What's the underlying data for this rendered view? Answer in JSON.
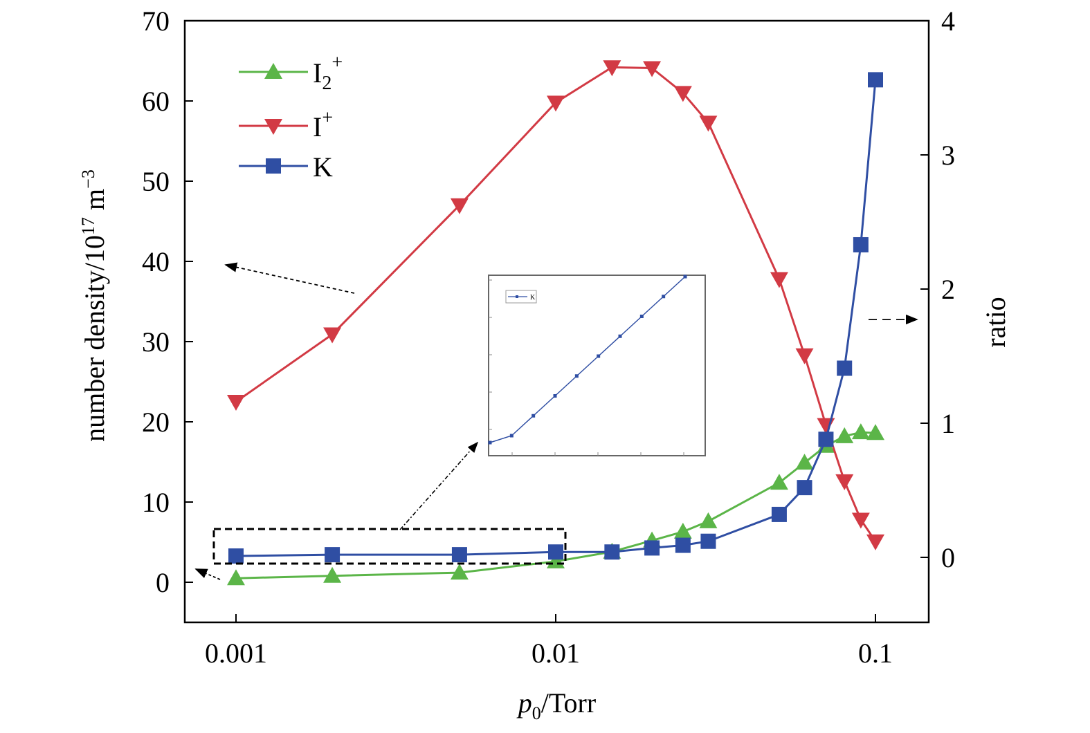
{
  "chart_data": {
    "type": "line",
    "x_scale": "log",
    "xlabel_italic": "p",
    "xlabel_sub": "0",
    "xlabel_rest": "/Torr",
    "xticks": [
      0.001,
      0.01,
      0.1
    ],
    "xtick_labels": [
      "0.001",
      "0.01",
      "0.1"
    ],
    "xlim": [
      0.0006,
      0.16
    ],
    "ylabel_left": "number density/10",
    "ylabel_left_sup": "17",
    "ylabel_left_unit": " m",
    "ylabel_left_unit_sup": "−3",
    "ylim_left": [
      -5,
      70
    ],
    "yticks_left": [
      0,
      10,
      20,
      30,
      40,
      50,
      60,
      70
    ],
    "ylabel_right": "ratio",
    "ylim_right": [
      -0.5,
      4
    ],
    "yticks_right": [
      0,
      1,
      2,
      3,
      4
    ],
    "legend_position": "top-left",
    "series": [
      {
        "name": "I2+",
        "legend_main": "I",
        "legend_sub": "2",
        "legend_sup": "+",
        "color": "#5bb548",
        "marker": "triangle-up",
        "axis": "left",
        "x": [
          0.001,
          0.002,
          0.005,
          0.01,
          0.015,
          0.02,
          0.025,
          0.03,
          0.05,
          0.06,
          0.07,
          0.08,
          0.09,
          0.1
        ],
        "y": [
          0.5,
          0.8,
          1.2,
          2.6,
          3.8,
          5.2,
          6.3,
          7.6,
          12.4,
          14.9,
          17.0,
          18.2,
          18.7,
          18.6
        ]
      },
      {
        "name": "I+",
        "legend_main": "I",
        "legend_sub": "",
        "legend_sup": "+",
        "color": "#d23a44",
        "marker": "triangle-down",
        "axis": "left",
        "x": [
          0.001,
          0.002,
          0.005,
          0.01,
          0.015,
          0.02,
          0.025,
          0.03,
          0.05,
          0.06,
          0.07,
          0.08,
          0.09,
          0.1
        ],
        "y": [
          22.5,
          30.9,
          47.0,
          59.8,
          64.2,
          64.1,
          61.0,
          57.3,
          37.8,
          28.3,
          19.6,
          12.6,
          7.8,
          5.1
        ]
      },
      {
        "name": "K",
        "legend_main": "K",
        "legend_sub": "",
        "legend_sup": "",
        "color": "#2f4ea3",
        "marker": "square",
        "axis": "right",
        "x": [
          0.001,
          0.002,
          0.005,
          0.01,
          0.015,
          0.02,
          0.025,
          0.03,
          0.05,
          0.06,
          0.07,
          0.08,
          0.09,
          0.1
        ],
        "y": [
          0.01,
          0.02,
          0.02,
          0.04,
          0.04,
          0.07,
          0.09,
          0.12,
          0.32,
          0.52,
          0.88,
          1.41,
          2.33,
          3.56
        ]
      }
    ],
    "inset": {
      "legend_label": "K",
      "color": "#2f4ea3",
      "points": 10
    }
  }
}
